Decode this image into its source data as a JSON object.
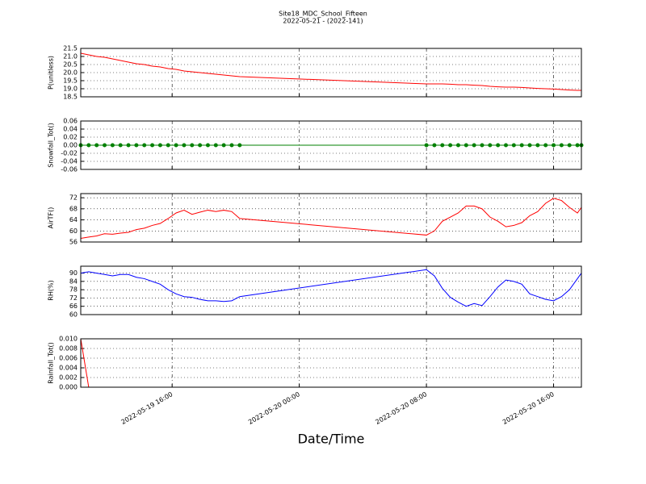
{
  "title": "Site18_MDC_School_Fifteen",
  "subtitle": "2022-05-21 - (2022-141)",
  "x_label": "Date/Time",
  "x": [
    "2022-05-19 10:15",
    "2022-05-19 10:45",
    "2022-05-19 11:15",
    "2022-05-19 11:45",
    "2022-05-19 12:15",
    "2022-05-19 12:45",
    "2022-05-19 13:15",
    "2022-05-19 13:45",
    "2022-05-19 14:15",
    "2022-05-19 14:45",
    "2022-05-19 15:15",
    "2022-05-19 15:45",
    "2022-05-19 16:15",
    "2022-05-19 16:45",
    "2022-05-19 17:15",
    "2022-05-19 17:45",
    "2022-05-19 18:15",
    "2022-05-19 18:45",
    "2022-05-19 19:15",
    "2022-05-19 19:45",
    "2022-05-19 20:15",
    "2022-05-20 08:00",
    "2022-05-20 08:30",
    "2022-05-20 09:00",
    "2022-05-20 09:30",
    "2022-05-20 10:00",
    "2022-05-20 10:30",
    "2022-05-20 11:00",
    "2022-05-20 11:30",
    "2022-05-20 12:00",
    "2022-05-20 12:30",
    "2022-05-20 13:00",
    "2022-05-20 13:30",
    "2022-05-20 14:00",
    "2022-05-20 14:30",
    "2022-05-20 15:00",
    "2022-05-20 15:30",
    "2022-05-20 16:00",
    "2022-05-20 16:30",
    "2022-05-20 17:00",
    "2022-05-20 17:30",
    "2022-05-20 17:45"
  ],
  "xlim": [
    "2022-05-19 10:15",
    "2022-05-20 17:45"
  ],
  "xticks": [
    "2022-05-19 16:00",
    "2022-05-20 00:00",
    "2022-05-20 08:00",
    "2022-05-20 16:00"
  ],
  "chart_data": [
    {
      "type": "line",
      "y_label": "P(unitless)",
      "ylim": [
        18.5,
        21.5
      ],
      "grid": true,
      "yticks": [
        18.5,
        {
          "value": 19,
          "label": "19.0"
        },
        19.5,
        {
          "value": 20,
          "label": "20.0"
        },
        20.5,
        {
          "value": 21,
          "label": "21.0"
        },
        21.5
      ],
      "series": [
        {
          "color": "#ff0000",
          "values": [
            21.2,
            21.1,
            21.0,
            20.95,
            20.85,
            20.75,
            20.65,
            20.55,
            20.5,
            20.4,
            20.35,
            20.25,
            20.2,
            20.1,
            20.05,
            20.0,
            19.95,
            19.9,
            19.85,
            19.8,
            19.75,
            19.3,
            19.3,
            19.3,
            19.28,
            19.25,
            19.25,
            19.22,
            19.2,
            19.15,
            19.12,
            19.1,
            19.1,
            19.08,
            19.05,
            19.02,
            19.0,
            18.98,
            18.95,
            18.92,
            18.9,
            18.9
          ]
        }
      ]
    },
    {
      "type": "line",
      "y_label": "Snowfall_Tot()",
      "ylim": [
        -0.06,
        0.06
      ],
      "grid": true,
      "marker": "circle",
      "yticks": [
        -0.06,
        -0.04,
        -0.02,
        {
          "value": 0,
          "label": "0.00"
        },
        0.02,
        0.04,
        0.06
      ],
      "series": [
        {
          "color": "#008000",
          "values": [
            0,
            0,
            0,
            0,
            0,
            0,
            0,
            0,
            0,
            0,
            0,
            0,
            0,
            0,
            0,
            0,
            0,
            0,
            0,
            0,
            0,
            0,
            0,
            0,
            0,
            0,
            0,
            0,
            0,
            0,
            0,
            0,
            0,
            0,
            0,
            0,
            0,
            0,
            0,
            0,
            0,
            0
          ]
        }
      ]
    },
    {
      "type": "line",
      "y_label": "AirTF()",
      "ylim": [
        56,
        73.5
      ],
      "grid": true,
      "yticks": [
        56,
        60,
        64,
        68,
        72
      ],
      "series": [
        {
          "color": "#ff0000",
          "values": [
            57.3,
            57.8,
            58.2,
            59,
            58.8,
            59.2,
            59.5,
            60.5,
            61,
            62,
            62.7,
            64.5,
            66.5,
            67.5,
            66,
            66.8,
            67.5,
            67,
            67.5,
            67,
            64.5,
            58.5,
            60,
            63.5,
            65,
            66.5,
            69,
            69,
            68,
            65,
            63.5,
            61.5,
            62,
            63,
            65.5,
            67,
            70,
            71.8,
            71,
            68.5,
            66.5,
            68.5
          ]
        }
      ]
    },
    {
      "type": "line",
      "y_label": "RH(%)",
      "ylim": [
        60,
        95
      ],
      "grid": true,
      "yticks": [
        60,
        66,
        72,
        78,
        84,
        90
      ],
      "series": [
        {
          "color": "#0000ff",
          "values": [
            90,
            91,
            90,
            89,
            88,
            89,
            89,
            87,
            86,
            84,
            82,
            78,
            75,
            73,
            72.5,
            71,
            70,
            70,
            69.5,
            70,
            73,
            92.5,
            88,
            79,
            72.5,
            69,
            66,
            68,
            66.5,
            73,
            80,
            85,
            84,
            82,
            75,
            73,
            71,
            70,
            73,
            78,
            86,
            90
          ]
        }
      ]
    },
    {
      "type": "line",
      "y_label": "Rainfall_Tot()",
      "ylim": [
        0,
        0.01
      ],
      "grid": true,
      "yticks": [
        {
          "value": 0,
          "label": "0.000"
        },
        0.002,
        0.004,
        0.006,
        0.008,
        {
          "value": 0.01,
          "label": "0.010"
        }
      ],
      "series": [
        {
          "color": "#ff0000",
          "values": [
            0.01,
            0,
            0,
            0,
            0,
            0,
            0,
            0,
            0,
            0,
            0,
            0,
            0,
            0,
            0,
            0,
            0,
            0,
            0,
            0,
            0,
            0,
            0,
            0,
            0,
            0,
            0,
            0,
            0,
            0,
            0,
            0,
            0,
            0,
            0,
            0,
            0,
            0,
            0,
            0,
            0,
            0
          ]
        }
      ]
    }
  ]
}
